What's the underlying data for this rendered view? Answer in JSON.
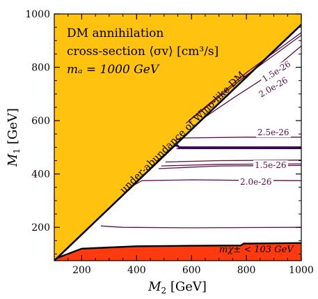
{
  "chart_data": {
    "type": "contour",
    "title_lines": [
      "DM annihilation",
      "cross-section ⟨σv⟩ [cm³/s]",
      "mₐ = 1000 GeV"
    ],
    "xlabel_main": "M",
    "xlabel_sub": "2",
    "xlabel_unit": " [GeV]",
    "ylabel_main": "M",
    "ylabel_sub": "1",
    "ylabel_unit": " [GeV]",
    "xlim": [
      100,
      1000
    ],
    "ylim": [
      75,
      1000
    ],
    "xticks": [
      200,
      400,
      600,
      800,
      1000
    ],
    "yticks": [
      200,
      400,
      600,
      800,
      1000
    ],
    "colors": {
      "underabundance": "#ffc20e",
      "chargino_excluded": "#ff3a0e",
      "contour": "#5a0d4a",
      "boundary": "#000000"
    },
    "regions": [
      {
        "label": "under-abundance of Wino-like DM",
        "color": "#ffc20e",
        "boundary": [
          [
            100,
            75
          ],
          [
            1000,
            960
          ]
        ]
      },
      {
        "label": "mχ± < 103 GeV",
        "color": "#ff3a0e",
        "boundary": [
          [
            110,
            85
          ],
          [
            200,
            120
          ],
          [
            400,
            129
          ],
          [
            600,
            131
          ],
          [
            780,
            132
          ],
          [
            790,
            139
          ],
          [
            1000,
            141
          ]
        ]
      }
    ],
    "contours": [
      {
        "label": "1.5e-26",
        "points": [
          [
            590,
            600
          ],
          [
            800,
            780
          ],
          [
            1000,
            930
          ]
        ]
      },
      {
        "label": "1.5e-26",
        "points": [
          [
            580,
            590
          ],
          [
            800,
            770
          ],
          [
            1000,
            920
          ]
        ]
      },
      {
        "label": "2.0e-26",
        "points": [
          [
            630,
            600
          ],
          [
            760,
            690
          ],
          [
            850,
            750
          ],
          [
            1000,
            880
          ]
        ]
      },
      {
        "label": "2.5e-26",
        "points": [
          [
            540,
            525
          ],
          [
            560,
            535
          ],
          [
            800,
            538
          ],
          [
            1000,
            538
          ]
        ]
      },
      {
        "label": "",
        "points": [
          [
            535,
            505
          ],
          [
            560,
            502
          ],
          [
            800,
            502
          ],
          [
            1000,
            502
          ]
        ]
      },
      {
        "label": "",
        "points": [
          [
            545,
            495
          ],
          [
            800,
            495
          ],
          [
            1000,
            495
          ]
        ]
      },
      {
        "label": "1.5e-26",
        "points": [
          [
            505,
            445
          ],
          [
            700,
            450
          ],
          [
            1000,
            452
          ]
        ]
      },
      {
        "label": "",
        "points": [
          [
            490,
            430
          ],
          [
            700,
            436
          ],
          [
            1000,
            438
          ]
        ]
      },
      {
        "label": "",
        "points": [
          [
            480,
            420
          ],
          [
            700,
            430
          ],
          [
            1000,
            432
          ]
        ]
      },
      {
        "label": "2.0e-26",
        "points": [
          [
            375,
            350
          ],
          [
            420,
            375
          ],
          [
            600,
            378
          ],
          [
            800,
            376
          ],
          [
            1000,
            375
          ]
        ]
      },
      {
        "label": "",
        "points": [
          [
            270,
            205
          ],
          [
            350,
            200
          ],
          [
            600,
            198
          ],
          [
            800,
            199
          ],
          [
            1000,
            200
          ]
        ]
      }
    ]
  }
}
